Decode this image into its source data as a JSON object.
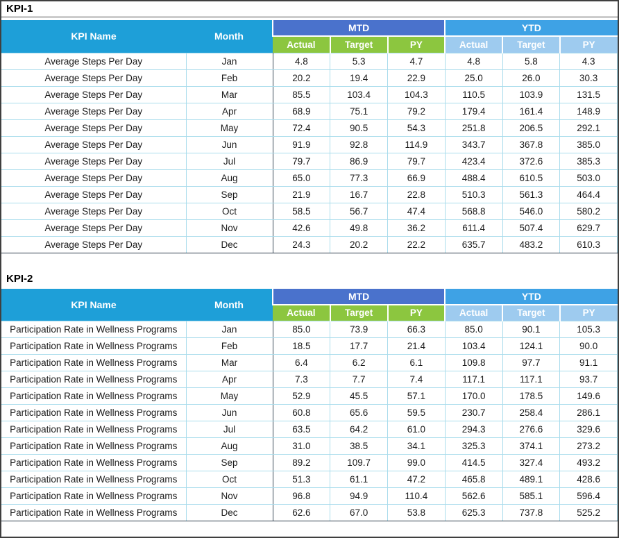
{
  "colors": {
    "header_cyan": "#1E9FD8",
    "mtd_royal_blue": "#4A72CC",
    "ytd_blue": "#3EA2E5",
    "mtd_sub_green": "#8CC63F",
    "ytd_sub_light_blue": "#9ECBEF",
    "grid_cyan_border": "#A9DCEC",
    "month_column_dark_border": "#3A4A58",
    "table_bottom_border": "#2B3A49"
  },
  "headers": {
    "kpi_name": "KPI Name",
    "month": "Month",
    "mtd": "MTD",
    "ytd": "YTD",
    "actual": "Actual",
    "target": "Target",
    "py": "PY"
  },
  "tables": [
    {
      "title": "KPI-1",
      "kpi_name": "Average Steps Per Day",
      "rows": [
        {
          "month": "Jan",
          "values": [
            "4.8",
            "5.3",
            "4.7",
            "4.8",
            "5.8",
            "4.3"
          ]
        },
        {
          "month": "Feb",
          "values": [
            "20.2",
            "19.4",
            "22.9",
            "25.0",
            "26.0",
            "30.3"
          ]
        },
        {
          "month": "Mar",
          "values": [
            "85.5",
            "103.4",
            "104.3",
            "110.5",
            "103.9",
            "131.5"
          ]
        },
        {
          "month": "Apr",
          "values": [
            "68.9",
            "75.1",
            "79.2",
            "179.4",
            "161.4",
            "148.9"
          ]
        },
        {
          "month": "May",
          "values": [
            "72.4",
            "90.5",
            "54.3",
            "251.8",
            "206.5",
            "292.1"
          ]
        },
        {
          "month": "Jun",
          "values": [
            "91.9",
            "92.8",
            "114.9",
            "343.7",
            "367.8",
            "385.0"
          ]
        },
        {
          "month": "Jul",
          "values": [
            "79.7",
            "86.9",
            "79.7",
            "423.4",
            "372.6",
            "385.3"
          ]
        },
        {
          "month": "Aug",
          "values": [
            "65.0",
            "77.3",
            "66.9",
            "488.4",
            "610.5",
            "503.0"
          ]
        },
        {
          "month": "Sep",
          "values": [
            "21.9",
            "16.7",
            "22.8",
            "510.3",
            "561.3",
            "464.4"
          ]
        },
        {
          "month": "Oct",
          "values": [
            "58.5",
            "56.7",
            "47.4",
            "568.8",
            "546.0",
            "580.2"
          ]
        },
        {
          "month": "Nov",
          "values": [
            "42.6",
            "49.8",
            "36.2",
            "611.4",
            "507.4",
            "629.7"
          ]
        },
        {
          "month": "Dec",
          "values": [
            "24.3",
            "20.2",
            "22.2",
            "635.7",
            "483.2",
            "610.3"
          ]
        }
      ]
    },
    {
      "title": "KPI-2",
      "kpi_name": "Participation Rate in Wellness Programs",
      "rows": [
        {
          "month": "Jan",
          "values": [
            "85.0",
            "73.9",
            "66.3",
            "85.0",
            "90.1",
            "105.3"
          ]
        },
        {
          "month": "Feb",
          "values": [
            "18.5",
            "17.7",
            "21.4",
            "103.4",
            "124.1",
            "90.0"
          ]
        },
        {
          "month": "Mar",
          "values": [
            "6.4",
            "6.2",
            "6.1",
            "109.8",
            "97.7",
            "91.1"
          ]
        },
        {
          "month": "Apr",
          "values": [
            "7.3",
            "7.7",
            "7.4",
            "117.1",
            "117.1",
            "93.7"
          ]
        },
        {
          "month": "May",
          "values": [
            "52.9",
            "45.5",
            "57.1",
            "170.0",
            "178.5",
            "149.6"
          ]
        },
        {
          "month": "Jun",
          "values": [
            "60.8",
            "65.6",
            "59.5",
            "230.7",
            "258.4",
            "286.1"
          ]
        },
        {
          "month": "Jul",
          "values": [
            "63.5",
            "64.2",
            "61.0",
            "294.3",
            "276.6",
            "329.6"
          ]
        },
        {
          "month": "Aug",
          "values": [
            "31.0",
            "38.5",
            "34.1",
            "325.3",
            "374.1",
            "273.2"
          ]
        },
        {
          "month": "Sep",
          "values": [
            "89.2",
            "109.7",
            "99.0",
            "414.5",
            "327.4",
            "493.2"
          ]
        },
        {
          "month": "Oct",
          "values": [
            "51.3",
            "61.1",
            "47.2",
            "465.8",
            "489.1",
            "428.6"
          ]
        },
        {
          "month": "Nov",
          "values": [
            "96.8",
            "94.9",
            "110.4",
            "562.6",
            "585.1",
            "596.4"
          ]
        },
        {
          "month": "Dec",
          "values": [
            "62.6",
            "67.0",
            "53.8",
            "625.3",
            "737.8",
            "525.2"
          ]
        }
      ]
    }
  ]
}
